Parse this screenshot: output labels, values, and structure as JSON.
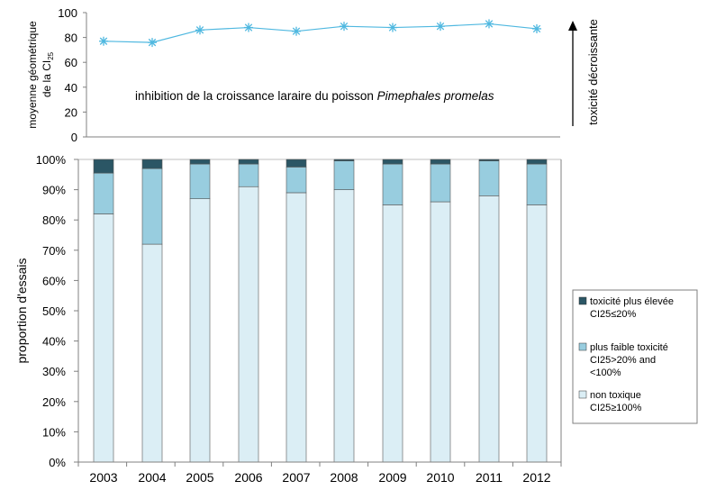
{
  "chart_data": [
    {
      "type": "line",
      "ylabel_line1": "moyenne géométrique",
      "ylabel_line2_prefix": "de la CI",
      "ylabel_line2_sub": "25",
      "annotation_prefix": "inhibition de la croissance laraire du poisson ",
      "annotation_italic": "Pimephales promelas",
      "right_label": "toxicité décroissante",
      "ylim": [
        0,
        100
      ],
      "yticks": [
        "0",
        "20",
        "40",
        "60",
        "80",
        "100"
      ],
      "x": [
        "2003",
        "2004",
        "2005",
        "2006",
        "2007",
        "2008",
        "2009",
        "2010",
        "2011",
        "2012"
      ],
      "values": [
        77,
        76,
        86,
        88,
        85,
        89,
        88,
        89,
        91,
        87
      ],
      "color": "#4fb8e0"
    },
    {
      "type": "bar",
      "stacked": true,
      "ylabel": "proportion d'essais",
      "ylim": [
        0,
        100
      ],
      "yticks": [
        "0%",
        "10%",
        "20%",
        "30%",
        "40%",
        "50%",
        "60%",
        "70%",
        "80%",
        "90%",
        "100%"
      ],
      "categories": [
        "2003",
        "2004",
        "2005",
        "2006",
        "2007",
        "2008",
        "2009",
        "2010",
        "2011",
        "2012"
      ],
      "series": [
        {
          "name_line1": "non toxique",
          "name_line2": "CI25≥100%",
          "color": "#dbeef5",
          "values": [
            82,
            72,
            87,
            91,
            89,
            90,
            85,
            86,
            88,
            85
          ]
        },
        {
          "name_line1": "plus faible toxicité",
          "name_line2": "CI25>20% and",
          "name_line3": "<100%",
          "color": "#98cddf",
          "values": [
            13.5,
            25,
            11.5,
            7.5,
            8.5,
            9.5,
            13.5,
            12.5,
            11.5,
            13.5
          ]
        },
        {
          "name_line1": "toxicité plus élevée",
          "name_line2": "CI25≤20%",
          "color": "#2b5665",
          "values": [
            4.5,
            3,
            1.5,
            1.5,
            2.5,
            0.5,
            1.5,
            1.5,
            0.5,
            1.5
          ]
        }
      ],
      "legend_position": "right"
    }
  ]
}
